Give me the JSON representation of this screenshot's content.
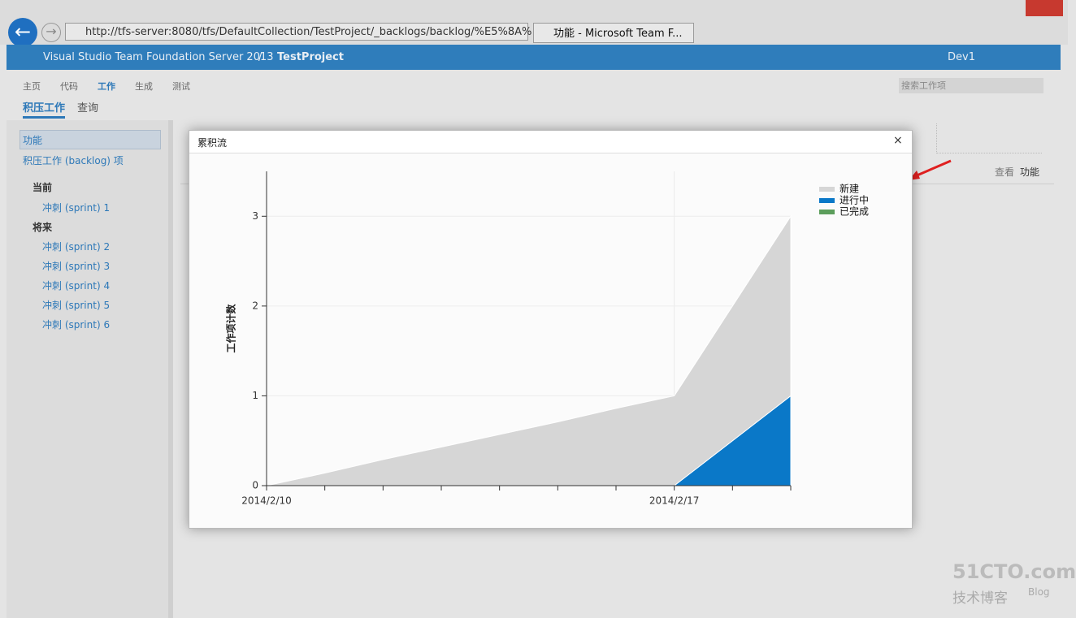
{
  "browser": {
    "url": "http://tfs-server:8080/tfs/DefaultCollection/TestProject/_backlogs/backlog/%E5%8A%",
    "tab": "功能 - Microsoft Team F..."
  },
  "header": {
    "product": "Visual Studio Team Foundation Server 2013",
    "separator": "/",
    "project": "TestProject",
    "user": "Dev1"
  },
  "nav": {
    "hubs": [
      "主页",
      "代码",
      "工作",
      "生成",
      "测试"
    ],
    "tabs": [
      "积压工作",
      "查询"
    ],
    "search": "搜索工作项"
  },
  "sidebar": {
    "items": [
      "功能",
      "积压工作 (backlog) 项"
    ],
    "groups": [
      {
        "title": "当前",
        "items": [
          "冲刺 (sprint) 1"
        ]
      },
      {
        "title": "将来",
        "items": [
          "冲刺 (sprint) 2",
          "冲刺 (sprint) 3",
          "冲刺 (sprint) 4",
          "冲刺 (sprint) 5",
          "冲刺 (sprint) 6"
        ]
      }
    ]
  },
  "right_panel": {
    "view_label": "查看",
    "view_value": "功能"
  },
  "dialog": {
    "title": "累积流",
    "close": "×"
  },
  "watermark": {
    "site": "51CTO.com",
    "sub": "技术博客",
    "blog": "Blog"
  },
  "chart_data": {
    "type": "area",
    "stacked": true,
    "y_label": "工作项计数",
    "categories": [
      "2014/2/10",
      null,
      null,
      null,
      null,
      null,
      null,
      "2014/2/17",
      null,
      null
    ],
    "series": [
      {
        "name": "新建",
        "color": "#d6d6d6",
        "values": [
          0,
          0.14,
          0.29,
          0.43,
          0.57,
          0.71,
          0.86,
          1,
          1.5,
          2
        ]
      },
      {
        "name": "进行中",
        "color": "#0a78c8",
        "values": [
          0,
          0,
          0,
          0,
          0,
          0,
          0,
          0,
          0.5,
          1
        ]
      },
      {
        "name": "已完成",
        "color": "#5c9e5c",
        "values": [
          0,
          0,
          0,
          0,
          0,
          0,
          0,
          0,
          0,
          0
        ]
      }
    ],
    "ylim": [
      0,
      3.5
    ],
    "yticks": [
      0,
      1,
      2,
      3
    ],
    "grid": true,
    "legend": "top-right"
  }
}
